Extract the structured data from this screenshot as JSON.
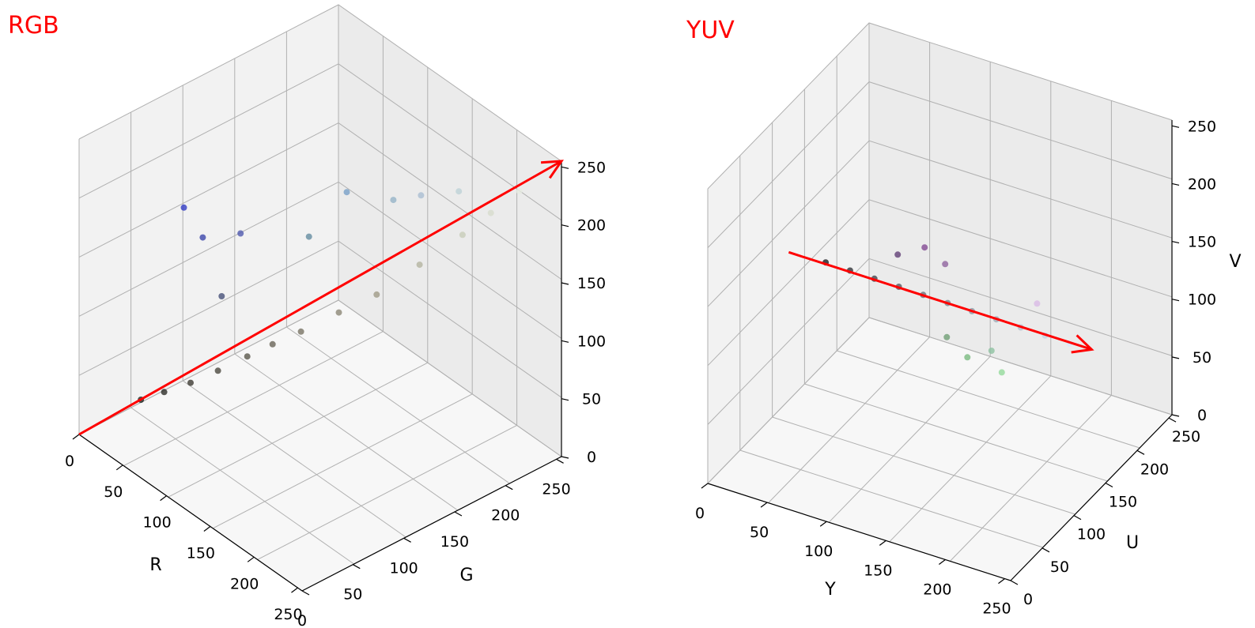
{
  "chart_data": [
    {
      "type": "scatter",
      "title": "RGB",
      "xlabel": "R",
      "ylabel": "G",
      "zlabel": "",
      "xlim": [
        0,
        255
      ],
      "ylim": [
        0,
        255
      ],
      "zlim": [
        0,
        255
      ],
      "xticks": [
        "0",
        "50",
        "100",
        "150",
        "200",
        "250"
      ],
      "yticks": [
        "0",
        "50",
        "100",
        "150",
        "200",
        "250"
      ],
      "zticks": [
        "0",
        "50",
        "100",
        "150",
        "200",
        "250"
      ],
      "grid": true,
      "arrow": {
        "color": "#ff0000",
        "from": [
          0,
          0,
          0
        ],
        "to": [
          255,
          255,
          255
        ]
      },
      "series": [
        {
          "points": [
            [
              30,
              35,
              30
            ],
            [
              45,
              45,
              40
            ],
            [
              60,
              58,
              50
            ],
            [
              75,
              72,
              62
            ],
            [
              90,
              88,
              75
            ],
            [
              105,
              100,
              88
            ],
            [
              120,
              115,
              100
            ],
            [
              140,
              135,
              118
            ],
            [
              160,
              155,
              135
            ],
            [
              180,
              180,
              160
            ],
            [
              200,
              205,
              185
            ],
            [
              215,
              220,
              205
            ],
            [
              230,
              235,
              225
            ],
            [
              70,
              80,
              120
            ],
            [
              60,
              70,
              170
            ],
            [
              50,
              60,
              195
            ],
            [
              80,
              90,
              175
            ],
            [
              100,
              140,
              160
            ],
            [
              120,
              160,
              200
            ],
            [
              150,
              180,
              200
            ],
            [
              170,
              190,
              210
            ],
            [
              190,
              210,
              215
            ]
          ]
        }
      ]
    },
    {
      "type": "scatter",
      "title": "YUV",
      "xlabel": "Y",
      "ylabel": "U",
      "zlabel": "V",
      "xlim": [
        0,
        255
      ],
      "ylim": [
        0,
        255
      ],
      "zlim": [
        0,
        255
      ],
      "xticks": [
        "0",
        "50",
        "100",
        "150",
        "200",
        "250"
      ],
      "yticks": [
        "0",
        "50",
        "100",
        "150",
        "200",
        "250"
      ],
      "zticks": [
        "0",
        "50",
        "100",
        "150",
        "200",
        "250"
      ],
      "grid": true,
      "arrow": {
        "color": "#ff0000",
        "from": [
          0,
          128,
          128
        ],
        "to": [
          255,
          128,
          128
        ]
      },
      "series": [
        {
          "points": [
            [
              30,
              130,
              128
            ],
            [
              50,
              131,
              127
            ],
            [
              70,
              132,
              126
            ],
            [
              90,
              133,
              125
            ],
            [
              110,
              134,
              124
            ],
            [
              130,
              135,
              123
            ],
            [
              150,
              136,
              122
            ],
            [
              170,
              137,
              121
            ],
            [
              190,
              138,
              120
            ],
            [
              210,
              139,
              119
            ],
            [
              230,
              140,
              118
            ],
            [
              80,
              150,
              140
            ],
            [
              100,
              155,
              150
            ],
            [
              120,
              150,
              145
            ],
            [
              140,
              115,
              108
            ],
            [
              160,
              110,
              100
            ],
            [
              175,
              120,
              105
            ],
            [
              190,
              108,
              98
            ],
            [
              200,
              145,
              140
            ]
          ]
        }
      ]
    }
  ]
}
